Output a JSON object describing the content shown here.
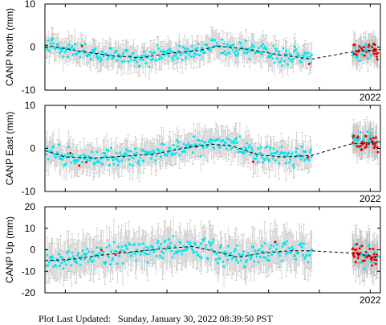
{
  "footer": {
    "label": "Plot Last Updated:",
    "timestamp": "Sunday, January 30, 2022 08:39:50 PST"
  },
  "colors": {
    "points_main": "#00e5ee",
    "points_recent": "#ee0000",
    "error_bars": "#bdbdbd",
    "model_line": "#000000"
  },
  "chart_data": [
    {
      "type": "scatter",
      "component": "north",
      "ylabel": "CANP North (mm)",
      "ylim": [
        -10,
        10
      ],
      "yticks": [
        -10,
        0,
        10
      ],
      "x_tick_label": "2022",
      "x_range": [
        2015.6,
        2022.2
      ],
      "gap": [
        2020.85,
        2021.6
      ],
      "model": {
        "x": [
          2015.6,
          2016.2,
          2016.9,
          2017.5,
          2018.0,
          2018.6,
          2019.0,
          2019.6,
          2020.2,
          2020.85,
          2021.6,
          2022.2
        ],
        "y": [
          0.5,
          -0.8,
          -2.0,
          -2.5,
          -1.5,
          -0.8,
          0.2,
          -0.5,
          -1.8,
          -2.8,
          -1.2,
          -0.5
        ]
      },
      "error_half_width": 2.5,
      "noise": 1.6,
      "recent_start": 2021.6
    },
    {
      "type": "scatter",
      "component": "east",
      "ylabel": "CANP East  (mm)",
      "ylim": [
        -10,
        10
      ],
      "yticks": [
        -10,
        0,
        10
      ],
      "x_tick_label": "2022",
      "x_range": [
        2015.6,
        2022.2
      ],
      "gap": [
        2020.85,
        2021.6
      ],
      "model": {
        "x": [
          2015.6,
          2016.0,
          2016.6,
          2017.2,
          2017.8,
          2018.4,
          2018.9,
          2019.3,
          2019.8,
          2020.3,
          2020.85,
          2021.6,
          2022.2
        ],
        "y": [
          -0.5,
          -2.0,
          -2.2,
          -1.8,
          -1.2,
          0.2,
          1.0,
          0.5,
          -1.5,
          -2.0,
          -1.6,
          1.0,
          1.5
        ]
      },
      "error_half_width": 3.0,
      "noise": 1.8,
      "recent_start": 2021.6
    },
    {
      "type": "scatter",
      "component": "up",
      "ylabel": "CANP Up (mm)",
      "ylim": [
        -20,
        20
      ],
      "yticks": [
        -20,
        -10,
        0,
        10,
        20
      ],
      "x_tick_label": "2022",
      "x_range": [
        2015.6,
        2022.2
      ],
      "gap": [
        2020.85,
        2021.6
      ],
      "model": {
        "x": [
          2015.6,
          2016.1,
          2016.7,
          2017.3,
          2017.9,
          2018.5,
          2018.9,
          2019.4,
          2019.9,
          2020.4,
          2020.85,
          2021.6,
          2022.2
        ],
        "y": [
          -5.0,
          -4.5,
          -2.5,
          -1.0,
          0.5,
          1.5,
          -0.5,
          -3.5,
          -1.5,
          -0.5,
          -0.5,
          -1.5,
          -3.5
        ]
      },
      "error_half_width": 8.0,
      "noise": 4.0,
      "recent_start": 2021.6
    }
  ]
}
